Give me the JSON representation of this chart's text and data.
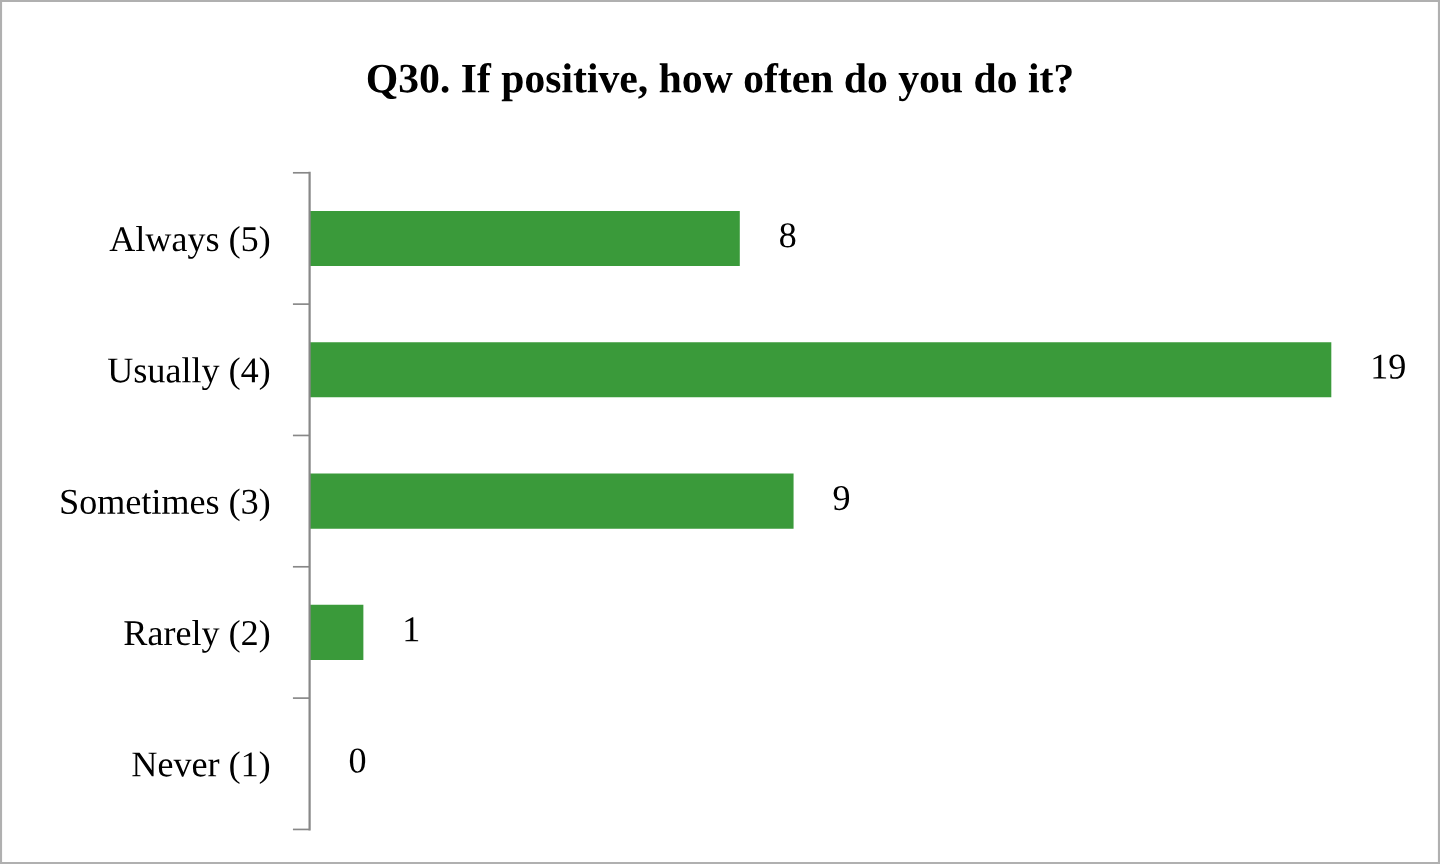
{
  "chart_data": {
    "type": "bar",
    "orientation": "horizontal",
    "title": "Q30. If positive, how often do you do it?",
    "categories": [
      "Always (5)",
      "Usually (4)",
      "Sometimes (3)",
      "Rarely (2)",
      "Never (1)"
    ],
    "values": [
      8,
      19,
      9,
      1,
      0
    ],
    "color": "#3a9a3a",
    "data_labels": true,
    "tick_labels": "y",
    "grid": false,
    "legend": false
  }
}
